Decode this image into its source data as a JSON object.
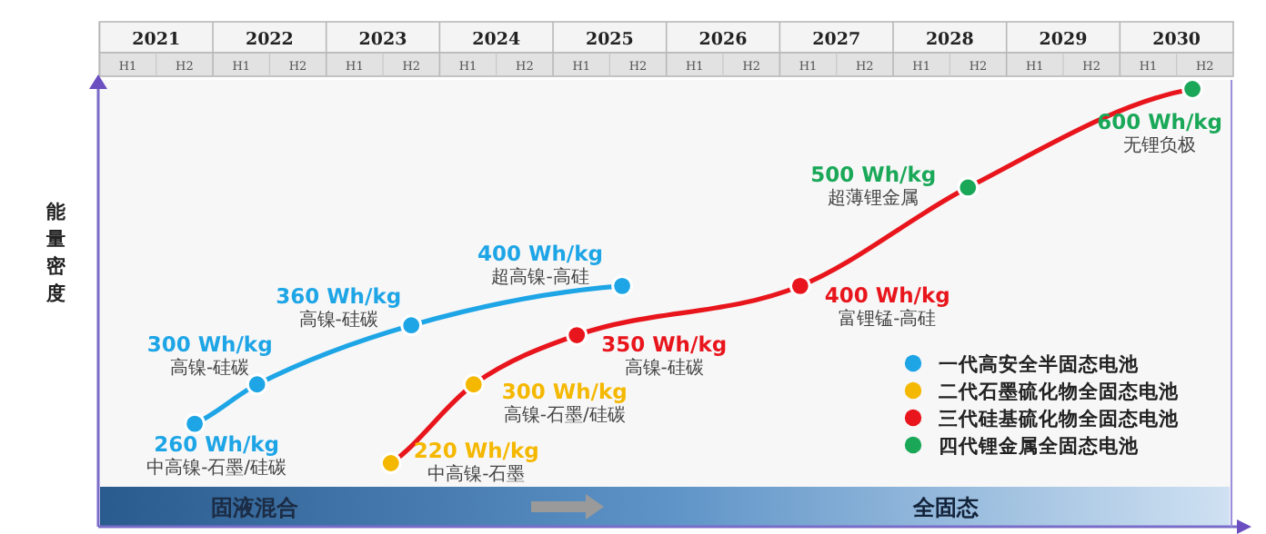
{
  "chart_data": {
    "type": "line",
    "ylabel": "能量密度",
    "xlim": [
      2020.5,
      2030.5
    ],
    "tick_labels": "x",
    "legend": "bottom right",
    "marker": "circle",
    "xticks": [
      2021,
      2022,
      2023,
      2024,
      2025,
      2026,
      2027,
      2028,
      2029,
      2030
    ],
    "series": [
      {
        "type": "line",
        "color": "#1ea5e6",
        "marker": "none",
        "x": [
          2021.34,
          2021.89,
          2023.25,
          2025.11
        ],
        "values": [
          260,
          300,
          360,
          400
        ]
      },
      {
        "type": "line",
        "color": "#e8161c",
        "marker": "none",
        "x": [
          2023.07,
          2023.8,
          2024.71,
          2026.68,
          2028.16,
          2030.14
        ],
        "values": [
          220,
          300,
          350,
          400,
          500,
          600
        ]
      },
      {
        "type": "scatter",
        "name": "一代高安全半固态电池",
        "color": "#1ea5e6",
        "x": [
          2021.34,
          2021.89,
          2023.25,
          2025.11
        ],
        "values": [
          260,
          300,
          360,
          400
        ],
        "value_labels": [
          "260 Wh/kg",
          "300 Wh/kg",
          "360 Wh/kg",
          "400 Wh/kg"
        ]
      },
      {
        "type": "scatter",
        "name": "二代石墨硫化物全固态电池",
        "color": "#f5b800",
        "x": [
          2023.07,
          2023.8
        ],
        "values": [
          220,
          300
        ],
        "value_labels": [
          "220 Wh/kg",
          "300 Wh/kg"
        ]
      },
      {
        "type": "scatter",
        "name": "三代硅基硫化物全固态电池",
        "color": "#e8161c",
        "x": [
          2024.71,
          2026.68
        ],
        "values": [
          350,
          400
        ],
        "value_labels": [
          "350 Wh/kg",
          "400 Wh/kg"
        ]
      },
      {
        "type": "scatter",
        "name": "四代锂金属全固态电池",
        "color": "#1aa858",
        "x": [
          2028.16,
          2030.14
        ],
        "values": [
          500,
          600
        ],
        "value_labels": [
          "500 Wh/kg",
          "600 Wh/kg"
        ]
      }
    ],
    "annotations": [
      {
        "text": "中高镍-石墨/硅碳",
        "x": 2021.34,
        "y": 260
      },
      {
        "text": "高镍-硅碳",
        "x": 2021.89,
        "y": 300
      },
      {
        "text": "高镍-硅碳",
        "x": 2023.25,
        "y": 360
      },
      {
        "text": "超高镍-高硅",
        "x": 2025.11,
        "y": 400
      },
      {
        "text": "中高镍-石墨",
        "x": 2023.07,
        "y": 220
      },
      {
        "text": "高镍-石墨/硅碳",
        "x": 2023.8,
        "y": 300
      },
      {
        "text": "高镍-硅碳",
        "x": 2024.71,
        "y": 350
      },
      {
        "text": "富锂锰-高硅",
        "x": 2026.68,
        "y": 400
      },
      {
        "text": "超薄锂金属",
        "x": 2028.16,
        "y": 500
      },
      {
        "text": "无锂负极",
        "x": 2030.14,
        "y": 600
      },
      "固液混合",
      "全固态",
      "H1",
      "H2",
      "H1",
      "H2",
      "H1",
      "H2",
      "H1",
      "H2",
      "H1",
      "H2",
      "H1",
      "H2",
      "H1",
      "H2",
      "H1",
      "H2",
      "H1",
      "H2",
      "H1",
      "H2"
    ]
  }
}
